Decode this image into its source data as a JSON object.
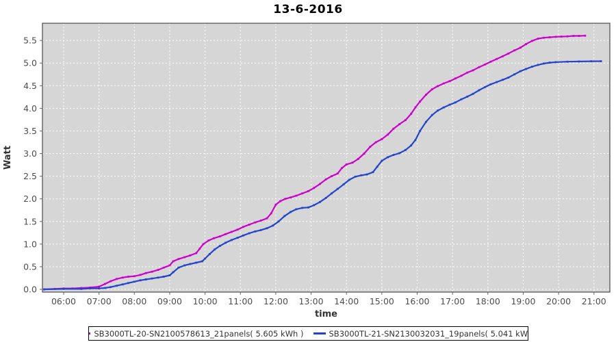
{
  "title": "13-6-2016",
  "chart_data": {
    "type": "line",
    "title": "13-6-2016",
    "xlabel": "time",
    "ylabel": "Watt",
    "xlim": [
      5.4,
      21.45
    ],
    "ylim": [
      -0.06,
      5.88
    ],
    "grid": true,
    "plot_bg_color": "#d6d6d6",
    "grid_color": "#ffffff",
    "border_color": "#545454",
    "tick_color": "#666666",
    "tick_label_color": "#4d4d4d",
    "legend_position": "bottom",
    "x_ticks": [
      {
        "value": 6,
        "label": "06:00"
      },
      {
        "value": 7,
        "label": "07:00"
      },
      {
        "value": 8,
        "label": "08:00"
      },
      {
        "value": 9,
        "label": "09:00"
      },
      {
        "value": 10,
        "label": "10:00"
      },
      {
        "value": 11,
        "label": "11:00"
      },
      {
        "value": 12,
        "label": "12:00"
      },
      {
        "value": 13,
        "label": "13:00"
      },
      {
        "value": 14,
        "label": "14:00"
      },
      {
        "value": 15,
        "label": "15:00"
      },
      {
        "value": 16,
        "label": "16:00"
      },
      {
        "value": 17,
        "label": "17:00"
      },
      {
        "value": 18,
        "label": "18:00"
      },
      {
        "value": 19,
        "label": "19:00"
      },
      {
        "value": 20,
        "label": "20:00"
      },
      {
        "value": 21,
        "label": "21:00"
      }
    ],
    "y_ticks": [
      {
        "value": 0.0,
        "label": "0.0"
      },
      {
        "value": 0.5,
        "label": "0.5"
      },
      {
        "value": 1.0,
        "label": "1.0"
      },
      {
        "value": 1.5,
        "label": "1.5"
      },
      {
        "value": 2.0,
        "label": "2.0"
      },
      {
        "value": 2.5,
        "label": "2.5"
      },
      {
        "value": 3.0,
        "label": "3.0"
      },
      {
        "value": 3.5,
        "label": "3.5"
      },
      {
        "value": 4.0,
        "label": "4.0"
      },
      {
        "value": 4.5,
        "label": "4.5"
      },
      {
        "value": 5.0,
        "label": "5.0"
      },
      {
        "value": 5.5,
        "label": "5.5"
      }
    ],
    "series": [
      {
        "name": "SB3000TL-20-SN2100578613_21panels( 5.605 kWh )",
        "color": "#cc00cc",
        "total_kwh": 5.605,
        "points": [
          [
            5.45,
            0.0
          ],
          [
            5.75,
            0.01
          ],
          [
            6.0,
            0.02
          ],
          [
            6.25,
            0.02
          ],
          [
            6.5,
            0.03
          ],
          [
            6.75,
            0.04
          ],
          [
            7.0,
            0.06
          ],
          [
            7.17,
            0.12
          ],
          [
            7.33,
            0.18
          ],
          [
            7.5,
            0.23
          ],
          [
            7.67,
            0.26
          ],
          [
            7.83,
            0.28
          ],
          [
            8.0,
            0.29
          ],
          [
            8.17,
            0.32
          ],
          [
            8.33,
            0.36
          ],
          [
            8.5,
            0.39
          ],
          [
            8.67,
            0.43
          ],
          [
            8.83,
            0.48
          ],
          [
            9.0,
            0.53
          ],
          [
            9.1,
            0.62
          ],
          [
            9.25,
            0.67
          ],
          [
            9.42,
            0.71
          ],
          [
            9.58,
            0.75
          ],
          [
            9.75,
            0.8
          ],
          [
            9.85,
            0.9
          ],
          [
            9.95,
            1.0
          ],
          [
            10.1,
            1.08
          ],
          [
            10.25,
            1.13
          ],
          [
            10.42,
            1.17
          ],
          [
            10.58,
            1.22
          ],
          [
            10.75,
            1.27
          ],
          [
            10.92,
            1.32
          ],
          [
            11.08,
            1.38
          ],
          [
            11.25,
            1.43
          ],
          [
            11.42,
            1.48
          ],
          [
            11.58,
            1.52
          ],
          [
            11.75,
            1.57
          ],
          [
            11.87,
            1.68
          ],
          [
            12.0,
            1.87
          ],
          [
            12.13,
            1.95
          ],
          [
            12.27,
            2.0
          ],
          [
            12.42,
            2.03
          ],
          [
            12.58,
            2.07
          ],
          [
            12.75,
            2.12
          ],
          [
            12.92,
            2.17
          ],
          [
            13.08,
            2.24
          ],
          [
            13.25,
            2.33
          ],
          [
            13.42,
            2.43
          ],
          [
            13.58,
            2.5
          ],
          [
            13.75,
            2.56
          ],
          [
            13.87,
            2.68
          ],
          [
            14.0,
            2.76
          ],
          [
            14.17,
            2.8
          ],
          [
            14.33,
            2.88
          ],
          [
            14.5,
            3.0
          ],
          [
            14.67,
            3.15
          ],
          [
            14.83,
            3.25
          ],
          [
            15.0,
            3.32
          ],
          [
            15.17,
            3.42
          ],
          [
            15.33,
            3.55
          ],
          [
            15.5,
            3.65
          ],
          [
            15.67,
            3.74
          ],
          [
            15.83,
            3.88
          ],
          [
            15.95,
            4.02
          ],
          [
            16.08,
            4.15
          ],
          [
            16.25,
            4.3
          ],
          [
            16.42,
            4.42
          ],
          [
            16.58,
            4.49
          ],
          [
            16.75,
            4.55
          ],
          [
            16.92,
            4.6
          ],
          [
            17.08,
            4.66
          ],
          [
            17.25,
            4.72
          ],
          [
            17.42,
            4.79
          ],
          [
            17.58,
            4.84
          ],
          [
            17.75,
            4.91
          ],
          [
            17.92,
            4.97
          ],
          [
            18.08,
            5.03
          ],
          [
            18.25,
            5.09
          ],
          [
            18.42,
            5.15
          ],
          [
            18.58,
            5.21
          ],
          [
            18.75,
            5.28
          ],
          [
            18.92,
            5.34
          ],
          [
            19.08,
            5.42
          ],
          [
            19.25,
            5.49
          ],
          [
            19.42,
            5.54
          ],
          [
            19.58,
            5.56
          ],
          [
            19.75,
            5.57
          ],
          [
            19.92,
            5.58
          ],
          [
            20.08,
            5.585
          ],
          [
            20.25,
            5.59
          ],
          [
            20.42,
            5.6
          ],
          [
            20.58,
            5.6
          ],
          [
            20.75,
            5.605
          ]
        ]
      },
      {
        "name": "SB3000TL-21-SN2130032031_19panels( 5.041 kWh )",
        "color": "#2244cc",
        "total_kwh": 5.041,
        "points": [
          [
            5.45,
            0.0
          ],
          [
            6.0,
            0.01
          ],
          [
            6.5,
            0.01
          ],
          [
            6.75,
            0.02
          ],
          [
            7.0,
            0.02
          ],
          [
            7.17,
            0.03
          ],
          [
            7.33,
            0.05
          ],
          [
            7.5,
            0.08
          ],
          [
            7.67,
            0.11
          ],
          [
            7.83,
            0.14
          ],
          [
            8.0,
            0.17
          ],
          [
            8.17,
            0.2
          ],
          [
            8.33,
            0.22
          ],
          [
            8.5,
            0.24
          ],
          [
            8.67,
            0.26
          ],
          [
            8.83,
            0.28
          ],
          [
            9.0,
            0.31
          ],
          [
            9.1,
            0.38
          ],
          [
            9.25,
            0.48
          ],
          [
            9.42,
            0.53
          ],
          [
            9.58,
            0.56
          ],
          [
            9.75,
            0.59
          ],
          [
            9.92,
            0.62
          ],
          [
            10.0,
            0.68
          ],
          [
            10.13,
            0.78
          ],
          [
            10.27,
            0.88
          ],
          [
            10.42,
            0.96
          ],
          [
            10.58,
            1.03
          ],
          [
            10.75,
            1.09
          ],
          [
            10.92,
            1.14
          ],
          [
            11.08,
            1.19
          ],
          [
            11.25,
            1.24
          ],
          [
            11.42,
            1.28
          ],
          [
            11.58,
            1.31
          ],
          [
            11.75,
            1.35
          ],
          [
            11.92,
            1.41
          ],
          [
            12.08,
            1.5
          ],
          [
            12.25,
            1.62
          ],
          [
            12.42,
            1.71
          ],
          [
            12.58,
            1.77
          ],
          [
            12.75,
            1.8
          ],
          [
            12.92,
            1.81
          ],
          [
            13.08,
            1.86
          ],
          [
            13.25,
            1.93
          ],
          [
            13.42,
            2.02
          ],
          [
            13.58,
            2.12
          ],
          [
            13.75,
            2.22
          ],
          [
            13.92,
            2.32
          ],
          [
            14.08,
            2.42
          ],
          [
            14.25,
            2.49
          ],
          [
            14.42,
            2.52
          ],
          [
            14.58,
            2.54
          ],
          [
            14.75,
            2.59
          ],
          [
            14.87,
            2.71
          ],
          [
            15.0,
            2.84
          ],
          [
            15.17,
            2.92
          ],
          [
            15.33,
            2.97
          ],
          [
            15.5,
            3.01
          ],
          [
            15.67,
            3.08
          ],
          [
            15.83,
            3.18
          ],
          [
            15.95,
            3.3
          ],
          [
            16.08,
            3.5
          ],
          [
            16.25,
            3.7
          ],
          [
            16.42,
            3.85
          ],
          [
            16.58,
            3.95
          ],
          [
            16.75,
            4.02
          ],
          [
            16.92,
            4.08
          ],
          [
            17.08,
            4.13
          ],
          [
            17.25,
            4.2
          ],
          [
            17.42,
            4.26
          ],
          [
            17.58,
            4.32
          ],
          [
            17.75,
            4.4
          ],
          [
            17.92,
            4.47
          ],
          [
            18.08,
            4.53
          ],
          [
            18.25,
            4.58
          ],
          [
            18.42,
            4.63
          ],
          [
            18.58,
            4.68
          ],
          [
            18.75,
            4.75
          ],
          [
            18.92,
            4.82
          ],
          [
            19.08,
            4.87
          ],
          [
            19.25,
            4.92
          ],
          [
            19.42,
            4.96
          ],
          [
            19.58,
            4.99
          ],
          [
            19.75,
            5.01
          ],
          [
            19.92,
            5.02
          ],
          [
            20.25,
            5.03
          ],
          [
            20.58,
            5.035
          ],
          [
            20.92,
            5.04
          ],
          [
            21.2,
            5.041
          ]
        ]
      }
    ]
  },
  "legend": {
    "items": [
      {
        "label": "SB3000TL-20-SN2100578613_21panels( 5.605 kWh )",
        "color": "#cc00cc"
      },
      {
        "label": "SB3000TL-21-SN2130032031_19panels( 5.041 kWh )",
        "color": "#2244cc"
      }
    ]
  }
}
